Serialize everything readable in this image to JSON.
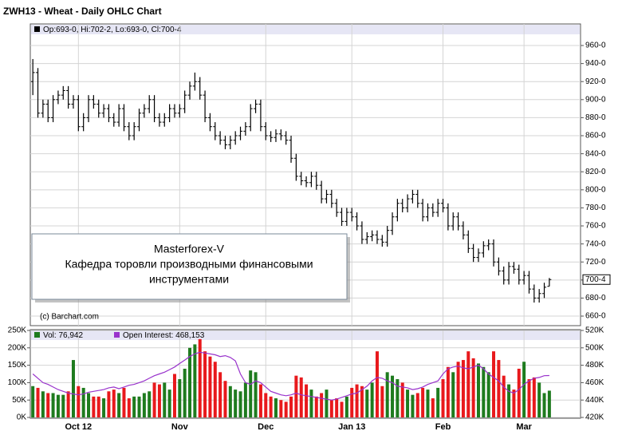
{
  "chart_data": [
    {
      "type": "ohlc",
      "title": "ZWH13 - Wheat - Daily OHLC Chart",
      "ohlc_legend": "Op:693-0, Hi:702-2, Lo:693-0, Cl:700-4",
      "credit": "(c) Barchart.com",
      "annotation": [
        "Masterforex-V",
        "Кафедра торовли производными финансовыми",
        "инструментами"
      ],
      "color": "#000000",
      "grid": true,
      "last_price": {
        "value": 700.5,
        "label": "700-4"
      },
      "ylim": [
        649.4,
        983.9
      ],
      "yticks": [
        {
          "value": 660,
          "label": "660-0"
        },
        {
          "value": 680,
          "label": "680-0"
        },
        {
          "value": 700,
          "label": "700-0"
        },
        {
          "value": 720,
          "label": "720-0"
        },
        {
          "value": 740,
          "label": "740-0"
        },
        {
          "value": 760,
          "label": "760-0"
        },
        {
          "value": 780,
          "label": "780-0"
        },
        {
          "value": 800,
          "label": "800-0"
        },
        {
          "value": 820,
          "label": "820-0"
        },
        {
          "value": 840,
          "label": "840-0"
        },
        {
          "value": 860,
          "label": "860-0"
        },
        {
          "value": 880,
          "label": "880-0"
        },
        {
          "value": 900,
          "label": "900-0"
        },
        {
          "value": 920,
          "label": "920-0"
        },
        {
          "value": 940,
          "label": "940-0"
        },
        {
          "value": 960,
          "label": "960-0"
        }
      ],
      "open": [
        920,
        930,
        885,
        895,
        880,
        900,
        905,
        910,
        895,
        900,
        870,
        880,
        900,
        895,
        885,
        890,
        880,
        875,
        890,
        870,
        860,
        870,
        885,
        890,
        900,
        880,
        875,
        880,
        890,
        885,
        890,
        905,
        915,
        920,
        905,
        880,
        870,
        860,
        855,
        850,
        855,
        860,
        865,
        870,
        890,
        895,
        870,
        860,
        858,
        862,
        860,
        855,
        835,
        815,
        810,
        808,
        815,
        805,
        790,
        795,
        785,
        775,
        765,
        775,
        770,
        760,
        745,
        748,
        750,
        745,
        742,
        755,
        770,
        785,
        780,
        790,
        795,
        785,
        770,
        780,
        775,
        785,
        780,
        760,
        770,
        760,
        750,
        735,
        725,
        730,
        738,
        740,
        720,
        710,
        700,
        715,
        712,
        700,
        705,
        690,
        680,
        685,
        693
      ],
      "high": [
        945,
        935,
        900,
        900,
        905,
        910,
        915,
        915,
        905,
        905,
        885,
        905,
        905,
        900,
        895,
        895,
        885,
        895,
        895,
        875,
        875,
        890,
        895,
        905,
        905,
        885,
        885,
        895,
        895,
        895,
        910,
        920,
        930,
        925,
        910,
        885,
        875,
        865,
        860,
        860,
        865,
        870,
        875,
        895,
        900,
        900,
        875,
        865,
        867,
        867,
        865,
        860,
        840,
        820,
        815,
        820,
        820,
        810,
        800,
        800,
        790,
        780,
        780,
        780,
        775,
        765,
        753,
        755,
        755,
        750,
        760,
        775,
        790,
        790,
        795,
        800,
        800,
        790,
        785,
        785,
        790,
        790,
        785,
        775,
        775,
        765,
        755,
        740,
        735,
        743,
        745,
        745,
        725,
        715,
        720,
        720,
        717,
        710,
        710,
        695,
        690,
        697,
        702.25
      ],
      "low": [
        905,
        880,
        880,
        875,
        875,
        895,
        900,
        890,
        890,
        865,
        865,
        875,
        890,
        880,
        880,
        875,
        870,
        870,
        865,
        855,
        855,
        865,
        880,
        885,
        875,
        870,
        870,
        875,
        880,
        880,
        885,
        900,
        910,
        900,
        875,
        865,
        855,
        850,
        845,
        845,
        850,
        855,
        860,
        865,
        885,
        865,
        855,
        853,
        853,
        855,
        850,
        830,
        810,
        805,
        803,
        803,
        800,
        785,
        785,
        780,
        770,
        760,
        760,
        765,
        755,
        740,
        740,
        743,
        740,
        737,
        737,
        750,
        765,
        775,
        775,
        785,
        780,
        765,
        765,
        770,
        770,
        775,
        755,
        755,
        755,
        745,
        730,
        720,
        720,
        725,
        733,
        715,
        705,
        695,
        695,
        707,
        695,
        695,
        685,
        675,
        675,
        680,
        693
      ],
      "close": [
        930,
        885,
        895,
        880,
        900,
        905,
        910,
        895,
        900,
        870,
        880,
        900,
        895,
        885,
        890,
        880,
        875,
        890,
        870,
        860,
        870,
        885,
        890,
        900,
        880,
        875,
        880,
        890,
        885,
        890,
        905,
        915,
        920,
        905,
        880,
        870,
        860,
        855,
        850,
        855,
        860,
        865,
        870,
        890,
        895,
        870,
        860,
        858,
        862,
        860,
        855,
        835,
        815,
        810,
        808,
        815,
        805,
        790,
        795,
        785,
        775,
        765,
        775,
        770,
        760,
        745,
        748,
        750,
        745,
        742,
        755,
        770,
        785,
        780,
        790,
        795,
        785,
        770,
        780,
        775,
        785,
        780,
        760,
        770,
        760,
        750,
        735,
        725,
        730,
        738,
        740,
        720,
        710,
        700,
        715,
        712,
        700,
        705,
        690,
        680,
        685,
        692,
        700.5
      ]
    },
    {
      "type": "volume",
      "categories": [
        null,
        null,
        null,
        null,
        null,
        null,
        null,
        null,
        null,
        "Oct 12",
        null,
        null,
        null,
        null,
        null,
        null,
        null,
        null,
        null,
        null,
        null,
        null,
        null,
        null,
        null,
        null,
        null,
        null,
        null,
        "Nov",
        null,
        null,
        null,
        null,
        null,
        null,
        null,
        null,
        null,
        null,
        null,
        null,
        null,
        null,
        null,
        null,
        "Dec",
        null,
        null,
        null,
        null,
        null,
        null,
        null,
        null,
        null,
        null,
        null,
        null,
        null,
        null,
        null,
        null,
        "Jan 13",
        null,
        null,
        null,
        null,
        null,
        null,
        null,
        null,
        null,
        null,
        null,
        null,
        null,
        null,
        null,
        null,
        null,
        "Feb",
        null,
        null,
        null,
        null,
        null,
        null,
        null,
        null,
        null,
        null,
        null,
        null,
        null,
        null,
        null,
        "Mar",
        null,
        null,
        null,
        null,
        null
      ],
      "grid": true,
      "ylim": [
        0,
        250000
      ],
      "y2lim": [
        420000,
        520000
      ],
      "yticks": [
        {
          "value": 0,
          "label": "0K"
        },
        {
          "value": 50000,
          "label": "50K"
        },
        {
          "value": 100000,
          "label": "100K"
        },
        {
          "value": 150000,
          "label": "150K"
        },
        {
          "value": 200000,
          "label": "200K"
        },
        {
          "value": 250000,
          "label": "250K"
        }
      ],
      "y2ticks": [
        {
          "value": 420000,
          "label": "420K"
        },
        {
          "value": 440000,
          "label": "440K"
        },
        {
          "value": 460000,
          "label": "460K"
        },
        {
          "value": 480000,
          "label": "480K"
        },
        {
          "value": 500000,
          "label": "500K"
        },
        {
          "value": 520000,
          "label": "520K"
        }
      ],
      "series": [
        {
          "name": "Vol: 76,942",
          "color": "#1e7b1e",
          "up_color": "#1e7b1e",
          "down_color": "#e8191c",
          "values": [
            90000,
            85000,
            75000,
            70000,
            70000,
            65000,
            65000,
            75000,
            165000,
            90000,
            85000,
            70000,
            60000,
            60000,
            55000,
            75000,
            80000,
            70000,
            85000,
            55000,
            60000,
            60000,
            70000,
            75000,
            100000,
            95000,
            100000,
            80000,
            125000,
            110000,
            140000,
            200000,
            210000,
            225000,
            190000,
            175000,
            160000,
            130000,
            105000,
            90000,
            80000,
            75000,
            100000,
            135000,
            130000,
            95000,
            70000,
            60000,
            55000,
            50000,
            45000,
            60000,
            120000,
            115000,
            95000,
            80000,
            60000,
            70000,
            80000,
            50000,
            55000,
            45000,
            60000,
            85000,
            95000,
            90000,
            80000,
            100000,
            190000,
            90000,
            130000,
            120000,
            110000,
            100000,
            80000,
            65000,
            70000,
            85000,
            80000,
            55000,
            85000,
            110000,
            145000,
            130000,
            160000,
            165000,
            190000,
            170000,
            155000,
            145000,
            130000,
            190000,
            165000,
            120000,
            95000,
            80000,
            140000,
            160000,
            110000,
            115000,
            100000,
            70000,
            76942
          ]
        },
        {
          "name": "Open Interest: 468,153",
          "color": "#9933cc",
          "axis": "y2",
          "values": [
            470000,
            465000,
            460000,
            458000,
            455000,
            452000,
            450000,
            448000,
            447000,
            446000,
            447000,
            449000,
            450000,
            451000,
            452000,
            454000,
            455000,
            453000,
            455000,
            457000,
            458000,
            460000,
            462000,
            465000,
            468000,
            470000,
            472000,
            475000,
            478000,
            482000,
            486000,
            490000,
            493000,
            495000,
            494000,
            493000,
            492000,
            490000,
            491000,
            489000,
            485000,
            470000,
            460000,
            458000,
            462000,
            460000,
            455000,
            450000,
            448000,
            446000,
            445000,
            446000,
            448000,
            446000,
            445000,
            444000,
            443000,
            442000,
            441000,
            440000,
            441000,
            443000,
            445000,
            447000,
            448000,
            452000,
            456000,
            462000,
            466000,
            465000,
            462000,
            460000,
            456000,
            455000,
            454000,
            452000,
            453000,
            455000,
            458000,
            460000,
            462000,
            470000,
            476000,
            478000,
            479000,
            477000,
            476000,
            478000,
            480000,
            476000,
            470000,
            466000,
            462000,
            455000,
            450000,
            448000,
            452000,
            458000,
            462000,
            465000,
            466000,
            468000,
            468153
          ]
        }
      ]
    }
  ]
}
